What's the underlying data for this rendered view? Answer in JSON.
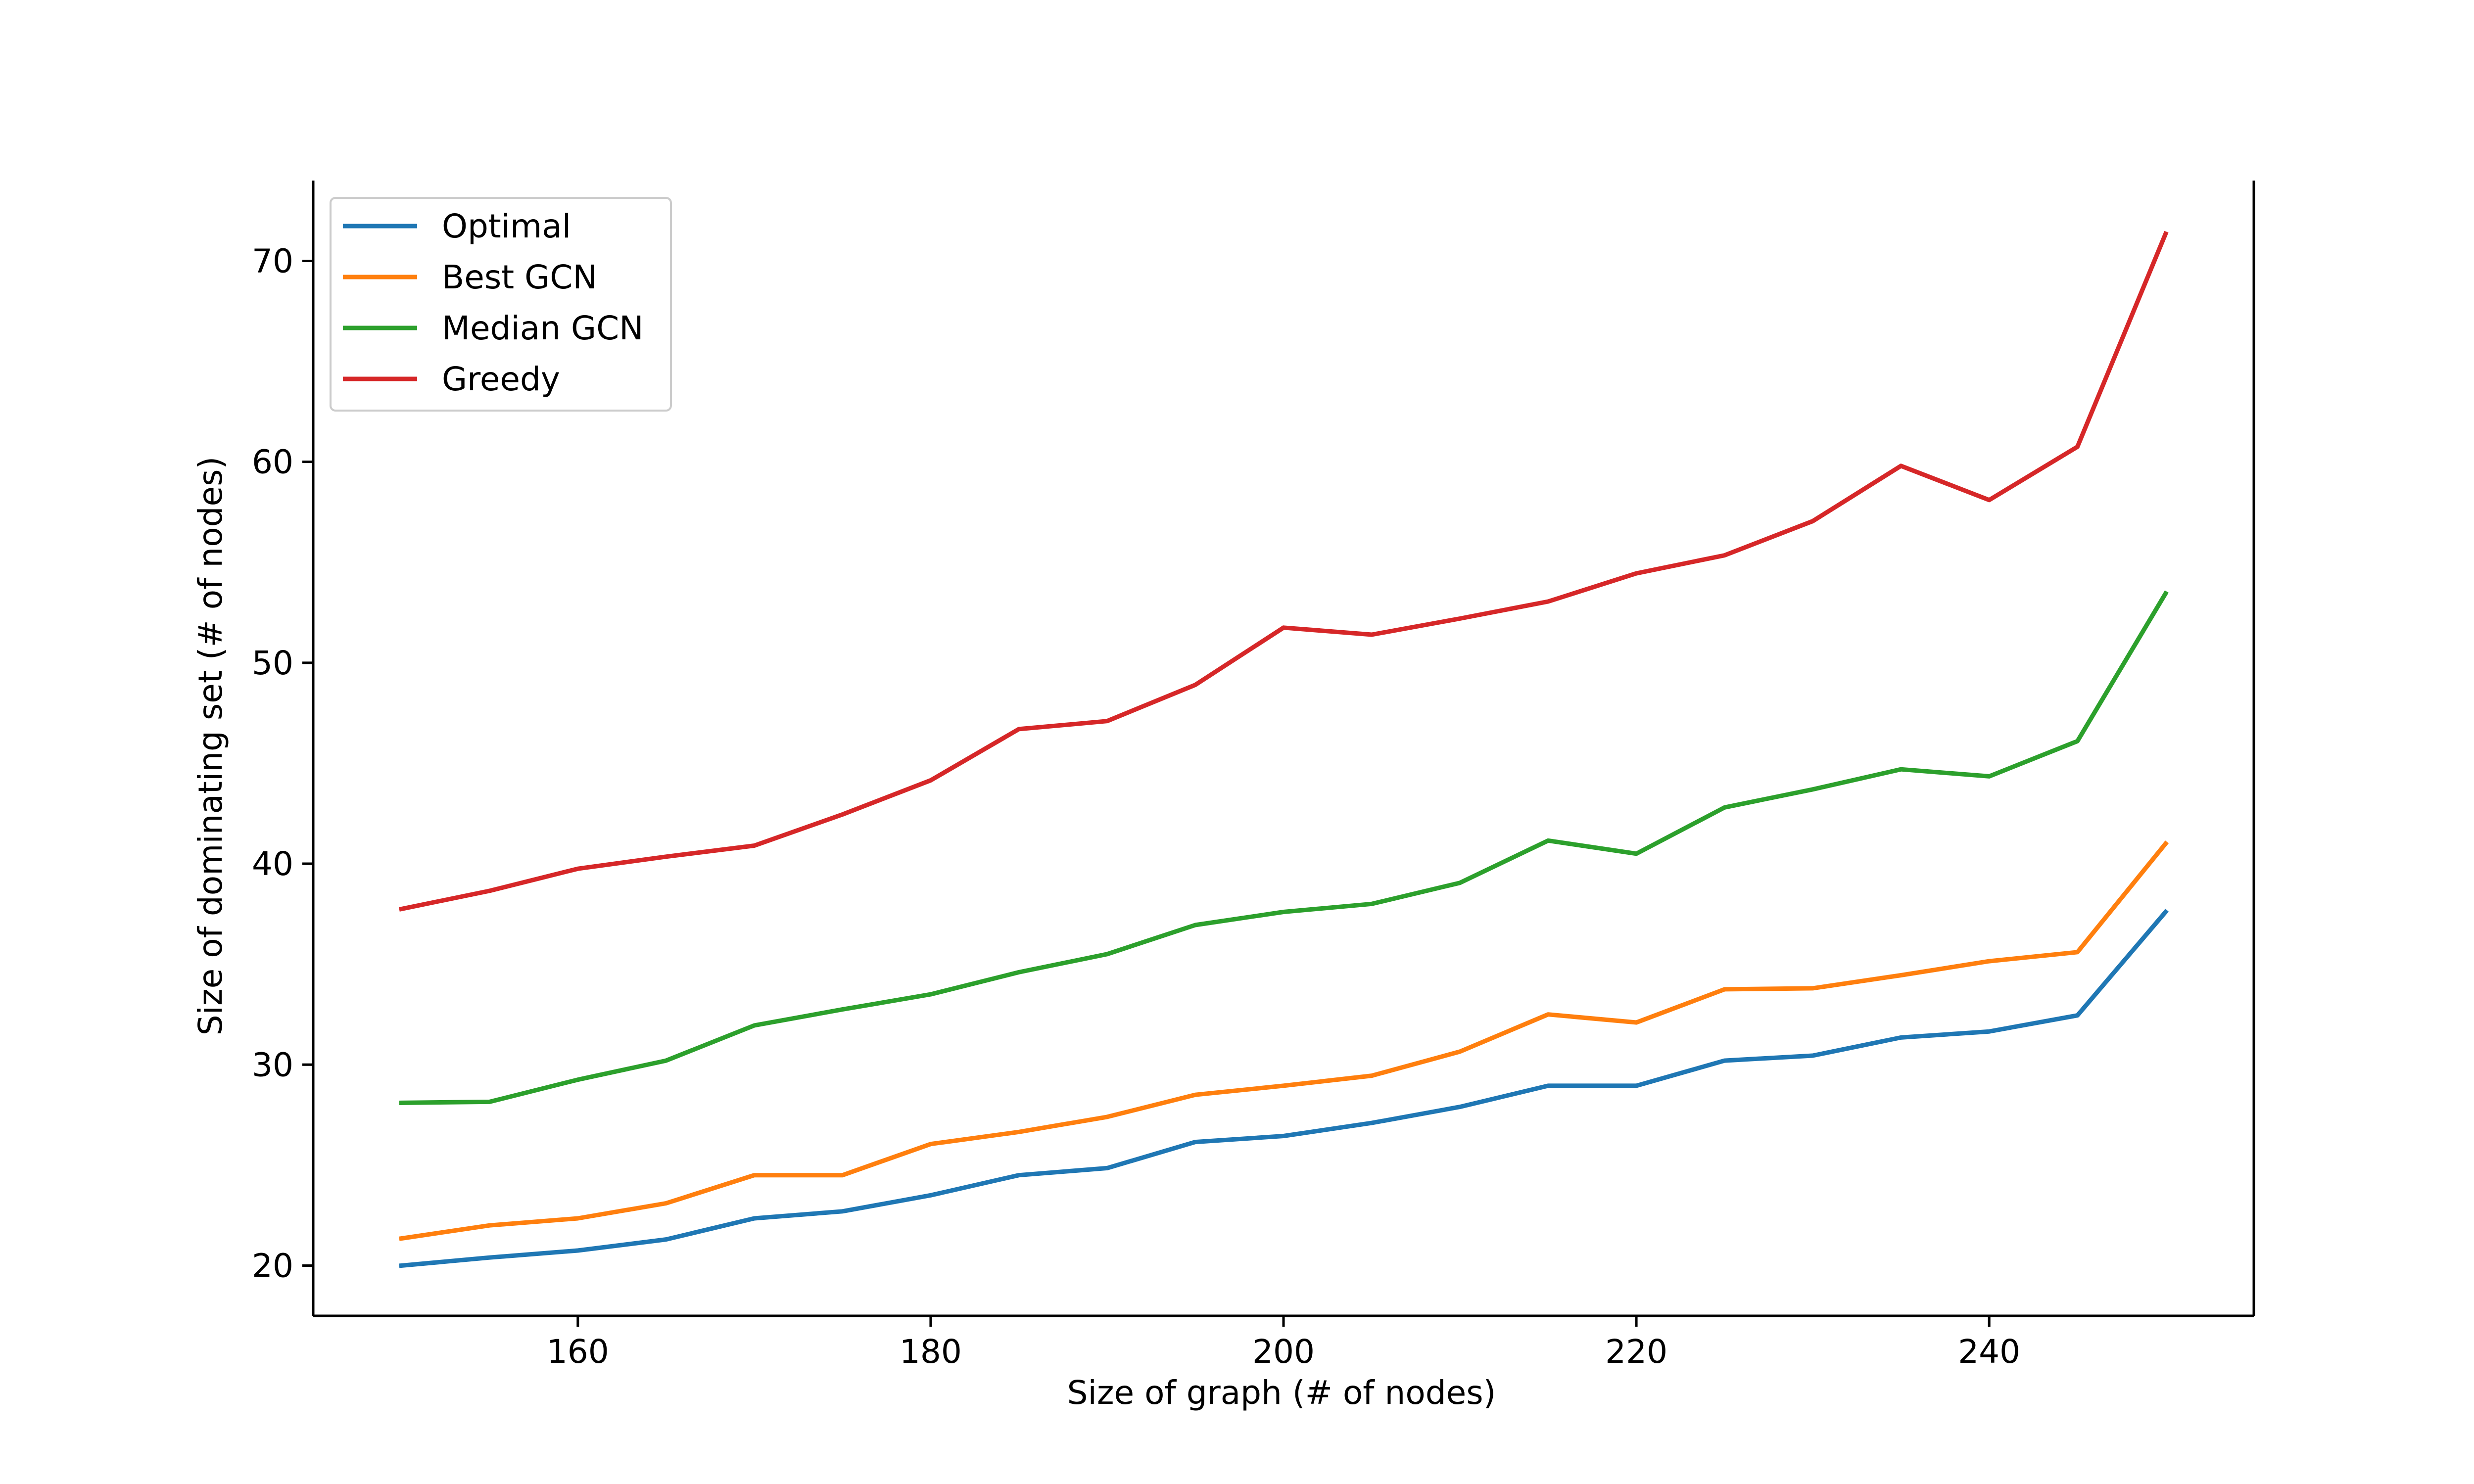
{
  "chart_data": {
    "type": "line",
    "title": "",
    "xlabel": "Size of graph (# of nodes)",
    "ylabel": "Size of dominating set (# of nodes)",
    "xlim": [
      145,
      255
    ],
    "ylim": [
      17.5,
      74
    ],
    "x_ticks": [
      160,
      180,
      200,
      220,
      240
    ],
    "y_ticks": [
      20,
      30,
      40,
      50,
      60,
      70
    ],
    "grid": false,
    "legend_position": "top-left",
    "x": [
      150,
      155,
      160,
      165,
      170,
      175,
      180,
      185,
      190,
      195,
      200,
      205,
      210,
      215,
      220,
      225,
      230,
      235,
      240,
      245,
      250
    ],
    "series": [
      {
        "name": "Optimal",
        "color": "#1f77b4",
        "values": [
          20.0,
          20.4,
          20.75,
          21.3,
          22.35,
          22.7,
          23.5,
          24.5,
          24.85,
          26.15,
          26.45,
          27.1,
          27.9,
          28.95,
          28.95,
          30.2,
          30.45,
          31.35,
          31.65,
          32.45,
          37.6
        ]
      },
      {
        "name": "Best GCN",
        "color": "#ff7f0e",
        "values": [
          21.35,
          22.0,
          22.35,
          23.1,
          24.5,
          24.5,
          26.05,
          26.65,
          27.4,
          28.5,
          28.95,
          29.45,
          30.65,
          32.5,
          32.1,
          33.75,
          33.8,
          34.45,
          35.15,
          35.6,
          41.0
        ]
      },
      {
        "name": "Median GCN",
        "color": "#2ca02c",
        "values": [
          28.1,
          28.15,
          29.25,
          30.2,
          31.95,
          32.75,
          33.5,
          34.6,
          35.5,
          36.95,
          37.6,
          38.0,
          39.05,
          41.15,
          40.5,
          42.8,
          43.7,
          44.7,
          44.35,
          46.1,
          53.45
        ]
      },
      {
        "name": "Greedy",
        "color": "#d62728",
        "values": [
          37.75,
          38.65,
          39.75,
          40.35,
          40.9,
          42.45,
          44.15,
          46.7,
          47.1,
          48.9,
          51.75,
          51.4,
          52.2,
          53.05,
          54.45,
          55.35,
          57.05,
          59.8,
          58.1,
          60.75,
          71.35
        ]
      }
    ]
  }
}
